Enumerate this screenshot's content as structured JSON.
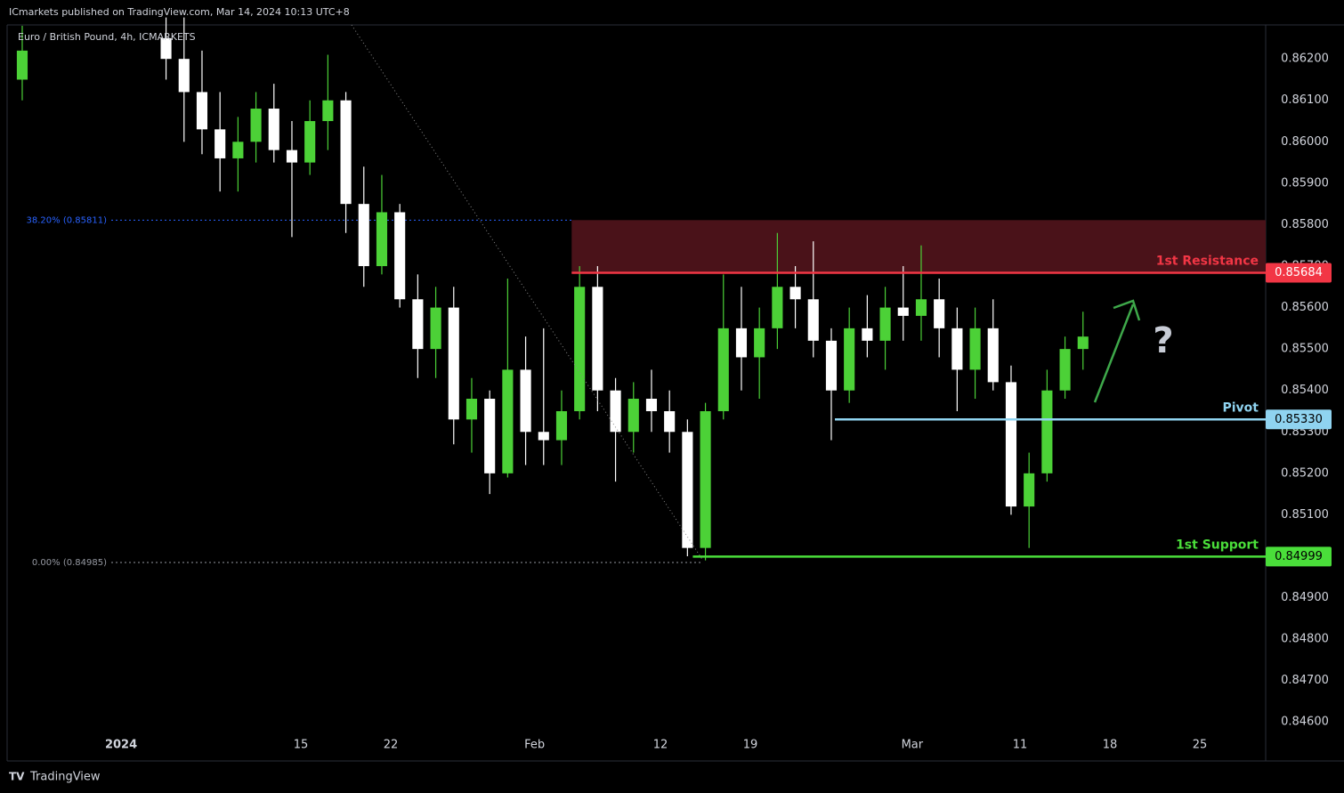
{
  "header": "ICmarkets published on TradingView.com, Mar 14, 2024 10:13 UTC+8",
  "footer": "TradingView",
  "chart_data": {
    "type": "candlestick",
    "symbol": "Euro / British Pound, 4h, ICMARKETS",
    "annotation": "?",
    "up_color": "#4cd137",
    "down_color": "#ffffff",
    "xlim": [
      -6.34,
      63.66
    ],
    "ylim": [
      0.84506,
      0.86282
    ],
    "xticks": [
      {
        "value": 0,
        "label": "2024"
      },
      {
        "value": 10,
        "label": "15"
      },
      {
        "value": 15,
        "label": "22"
      },
      {
        "value": 23,
        "label": "Feb"
      },
      {
        "value": 30,
        "label": "12"
      },
      {
        "value": 35,
        "label": "19"
      },
      {
        "value": 44,
        "label": "Mar"
      },
      {
        "value": 50,
        "label": "11"
      },
      {
        "value": 55,
        "label": "18"
      },
      {
        "value": 60,
        "label": "25"
      }
    ],
    "yticks": [
      {
        "value": 0.846,
        "label": "0.84600"
      },
      {
        "value": 0.847,
        "label": "0.84700"
      },
      {
        "value": 0.848,
        "label": "0.84800"
      },
      {
        "value": 0.849,
        "label": "0.84900"
      },
      {
        "value": 0.85,
        "label": "0.85000"
      },
      {
        "value": 0.851,
        "label": "0.85100"
      },
      {
        "value": 0.852,
        "label": "0.85200"
      },
      {
        "value": 0.853,
        "label": "0.85300"
      },
      {
        "value": 0.854,
        "label": "0.85400"
      },
      {
        "value": 0.855,
        "label": "0.85500"
      },
      {
        "value": 0.856,
        "label": "0.85600"
      },
      {
        "value": 0.857,
        "label": "0.85700"
      },
      {
        "value": 0.858,
        "label": "0.85800"
      },
      {
        "value": 0.859,
        "label": "0.85900"
      },
      {
        "value": 0.86,
        "label": "0.86000"
      },
      {
        "value": 0.861,
        "label": "0.86100"
      },
      {
        "value": 0.862,
        "label": "0.86200"
      }
    ],
    "x": [
      -5.5,
      2.5,
      3.5,
      4.5,
      5.5,
      6.5,
      7.5,
      8.5,
      9.5,
      10.5,
      11.5,
      12.5,
      13.5,
      14.5,
      15.5,
      16.5,
      17.5,
      18.5,
      19.5,
      20.5,
      21.5,
      22.5,
      23.5,
      24.5,
      25.5,
      26.5,
      27.5,
      28.5,
      29.5,
      30.5,
      31.5,
      32.5,
      33.5,
      34.5,
      35.5,
      36.5,
      37.5,
      38.5,
      39.5,
      40.5,
      41.5,
      42.5,
      43.5,
      44.5,
      45.5,
      46.5,
      47.5,
      48.5,
      49.5,
      50.5,
      51.5,
      52.5,
      53.5
    ],
    "open": [
      0.8615,
      0.8625,
      0.862,
      0.8612,
      0.8603,
      0.8596,
      0.86,
      0.8608,
      0.8598,
      0.8595,
      0.8605,
      0.861,
      0.8585,
      0.857,
      0.8583,
      0.8562,
      0.855,
      0.856,
      0.8533,
      0.8538,
      0.852,
      0.8545,
      0.853,
      0.8528,
      0.8535,
      0.8565,
      0.854,
      0.853,
      0.8538,
      0.8535,
      0.853,
      0.8502,
      0.8535,
      0.8555,
      0.8548,
      0.8555,
      0.8565,
      0.8562,
      0.8552,
      0.854,
      0.8555,
      0.8552,
      0.856,
      0.8558,
      0.8562,
      0.8555,
      0.8545,
      0.8555,
      0.8542,
      0.8512,
      0.852,
      0.854,
      0.855
    ],
    "high": [
      0.8628,
      0.863,
      0.863,
      0.8622,
      0.8612,
      0.8606,
      0.8612,
      0.8614,
      0.8605,
      0.861,
      0.8621,
      0.8612,
      0.8594,
      0.8592,
      0.8585,
      0.8568,
      0.8565,
      0.8565,
      0.8543,
      0.854,
      0.8567,
      0.8553,
      0.8555,
      0.854,
      0.857,
      0.857,
      0.8543,
      0.8542,
      0.8545,
      0.854,
      0.8533,
      0.8537,
      0.8568,
      0.8565,
      0.856,
      0.8578,
      0.857,
      0.8576,
      0.8555,
      0.856,
      0.8563,
      0.8565,
      0.857,
      0.8575,
      0.8567,
      0.856,
      0.856,
      0.8562,
      0.8546,
      0.8525,
      0.8545,
      0.8553,
      0.8559
    ],
    "low": [
      0.861,
      0.8615,
      0.86,
      0.8597,
      0.8588,
      0.8588,
      0.8595,
      0.8595,
      0.8577,
      0.8592,
      0.8598,
      0.8578,
      0.8565,
      0.8568,
      0.856,
      0.8543,
      0.8543,
      0.8527,
      0.8525,
      0.8515,
      0.8519,
      0.8522,
      0.8522,
      0.8522,
      0.8533,
      0.8535,
      0.8518,
      0.8525,
      0.853,
      0.8525,
      0.85,
      0.8499,
      0.8533,
      0.854,
      0.8538,
      0.855,
      0.8555,
      0.8548,
      0.8528,
      0.8537,
      0.8548,
      0.8545,
      0.8552,
      0.8552,
      0.8548,
      0.8535,
      0.8538,
      0.854,
      0.851,
      0.8502,
      0.8518,
      0.8538,
      0.8545
    ],
    "close": [
      0.8622,
      0.862,
      0.8612,
      0.8603,
      0.8596,
      0.86,
      0.8608,
      0.8598,
      0.8595,
      0.8605,
      0.861,
      0.8585,
      0.857,
      0.8583,
      0.8562,
      0.855,
      0.856,
      0.8533,
      0.8538,
      0.852,
      0.8545,
      0.853,
      0.8528,
      0.8535,
      0.8565,
      0.854,
      0.853,
      0.8538,
      0.8535,
      0.853,
      0.8502,
      0.8535,
      0.8555,
      0.8548,
      0.8555,
      0.8565,
      0.8562,
      0.8552,
      0.854,
      0.8555,
      0.8552,
      0.856,
      0.8558,
      0.8562,
      0.8555,
      0.8545,
      0.8555,
      0.8542,
      0.8512,
      0.852,
      0.854,
      0.855,
      0.8553
    ],
    "zone": {
      "low": 0.85684,
      "high": 0.85811,
      "start": 25.06,
      "color": "#4a1219"
    },
    "fib": [
      {
        "value": 0.85811,
        "label": "38.20% (0.85811)",
        "color": "#2962ff"
      },
      {
        "value": 0.84985,
        "label": "0.00% (0.84985)",
        "color": "#9598a1"
      }
    ],
    "levels": [
      {
        "name": "1st Resistance",
        "value": 0.85684,
        "label": "0.85684",
        "color": "#f23645",
        "text_color": "#ffffff",
        "start": 25.06
      },
      {
        "name": "Pivot",
        "value": 0.8533,
        "label": "0.85330",
        "color": "#8fd3f0",
        "text_color": "#000000",
        "start": 39.7
      },
      {
        "name": "1st Support",
        "value": 0.84999,
        "label": "0.84999",
        "color": "#4ade3a",
        "text_color": "#000000",
        "start": 31.8
      }
    ]
  }
}
